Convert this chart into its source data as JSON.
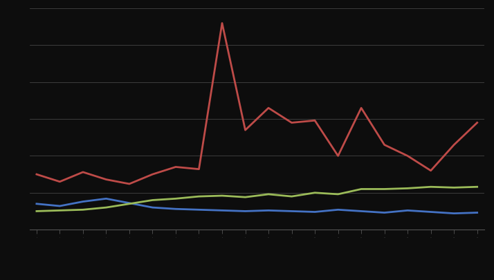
{
  "blue_values": [
    3.5,
    3.2,
    3.8,
    4.2,
    3.6,
    3.0,
    2.8,
    2.7,
    2.6,
    2.5,
    2.6,
    2.5,
    2.4,
    2.7,
    2.5,
    2.3,
    2.6,
    2.4,
    2.2,
    2.3
  ],
  "red_values": [
    7.5,
    6.5,
    7.8,
    6.8,
    6.2,
    7.5,
    8.5,
    8.2,
    28.0,
    13.5,
    16.5,
    14.5,
    14.8,
    10.0,
    16.5,
    11.5,
    10.0,
    8.0,
    11.5,
    14.5
  ],
  "green_values": [
    2.5,
    2.6,
    2.7,
    3.0,
    3.5,
    4.0,
    4.2,
    4.5,
    4.6,
    4.4,
    4.8,
    4.5,
    5.0,
    4.8,
    5.5,
    5.5,
    5.6,
    5.8,
    5.7,
    5.8
  ],
  "blue_color": "#4472C4",
  "red_color": "#BE4B48",
  "green_color": "#9BBB59",
  "background_color": "#0d0d0d",
  "grid_color": "#444444",
  "ylim": [
    0,
    30
  ],
  "legend_colors": [
    "#4472C4",
    "#BE4B48",
    "#9BBB59"
  ],
  "line_width": 2.0,
  "n_yticks": 7,
  "n_xticks": 20
}
